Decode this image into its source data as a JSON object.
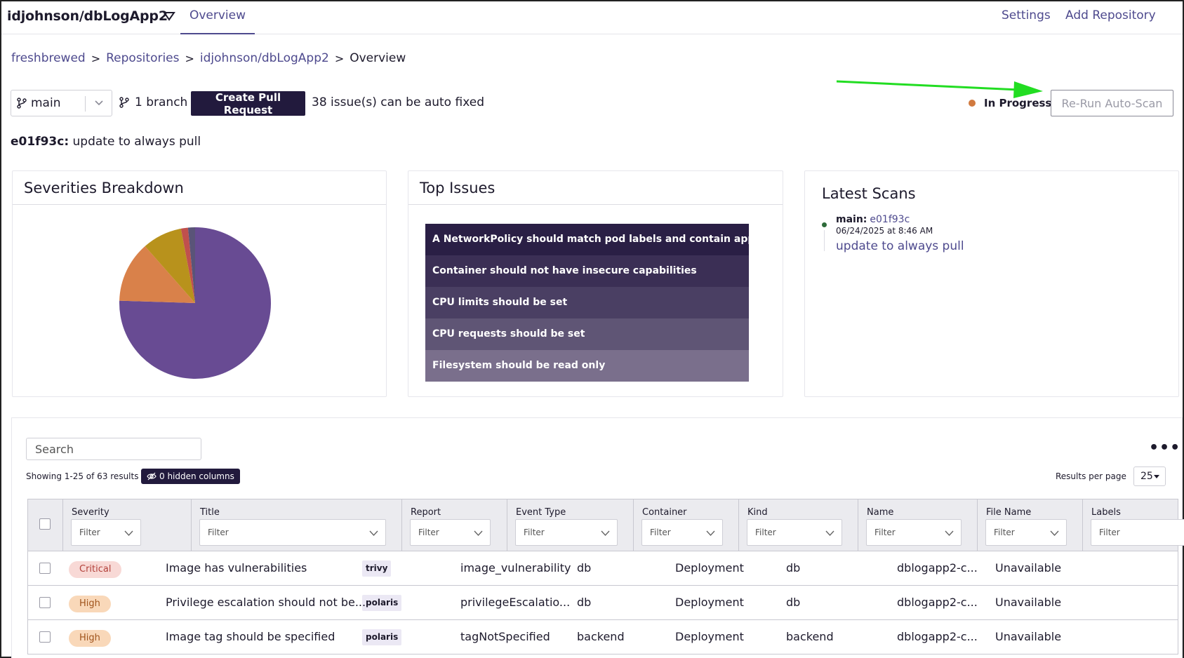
{
  "header": {
    "repo_title": "idjohnson/dbLogApp2",
    "tab_overview": "Overview",
    "settings_link": "Settings",
    "add_repository_link": "Add Repository"
  },
  "breadcrumb": {
    "items": [
      "freshbrewed",
      "Repositories",
      "idjohnson/dbLogApp2",
      "Overview"
    ],
    "separator": ">"
  },
  "toolbar": {
    "branch_value": "main",
    "branch_count": "1 branch",
    "create_pr_label": "Create Pull Request",
    "autofix_text": "38 issue(s) can be auto fixed",
    "scan_status": "In Progress",
    "rerun_label": "Re-Run Auto-Scan"
  },
  "commit": {
    "hash": "e01f93c:",
    "message": "update to always pull"
  },
  "severities": {
    "title": "Severities Breakdown",
    "colors": {
      "critical": "#c0504d",
      "high": "#d9814a",
      "medium": "#b8921c",
      "low": "#5a5478",
      "none": "#684b93"
    }
  },
  "chart_data": {
    "type": "pie",
    "slices": [
      {
        "category": "none",
        "value": 75.5
      },
      {
        "category": "high",
        "value": 13.0
      },
      {
        "category": "medium",
        "value": 8.5
      },
      {
        "category": "critical",
        "value": 1.5
      },
      {
        "category": "low",
        "value": 1.5
      }
    ]
  },
  "top_issues": {
    "title": "Top Issues",
    "items": [
      "A NetworkPolicy should match pod labels and contain applied egress and ingress rules",
      "Container should not have insecure capabilities",
      "CPU limits should be set",
      "CPU requests should be set",
      "Filesystem should be read only"
    ],
    "colors": [
      "#2a1f45",
      "#3b2f55",
      "#4a3f63",
      "#5f5575",
      "#7a6f8c"
    ]
  },
  "latest_scans": {
    "title": "Latest Scans",
    "branch": "main:",
    "hash": "e01f93c",
    "date": "06/24/2025 at 8:46 AM",
    "message": "update to always pull"
  },
  "table": {
    "search_placeholder": "Search",
    "more_menu": "•••",
    "showing": "Showing 1-25 of 63 results",
    "hidden_columns": "0 hidden columns",
    "results_per_page_label": "Results per page",
    "results_per_page_value": "25",
    "filter_placeholder": "Filter",
    "columns": [
      "Severity",
      "Title",
      "Report",
      "Event Type",
      "Container",
      "Kind",
      "Name",
      "File Name",
      "Labels"
    ],
    "rows": [
      {
        "severity": "Critical",
        "title": "Image has vulnerabilities",
        "report": "trivy",
        "event_type": "image_vulnerability",
        "container": "db",
        "kind": "Deployment",
        "name": "db",
        "file_name": "dblogapp2-c...",
        "labels": "Unavailable"
      },
      {
        "severity": "High",
        "title": "Privilege escalation should not be...",
        "report": "polaris",
        "event_type": "privilegeEscalatio...",
        "container": "db",
        "kind": "Deployment",
        "name": "db",
        "file_name": "dblogapp2-c...",
        "labels": "Unavailable"
      },
      {
        "severity": "High",
        "title": "Image tag should be specified",
        "report": "polaris",
        "event_type": "tagNotSpecified",
        "container": "backend",
        "kind": "Deployment",
        "name": "backend",
        "file_name": "dblogapp2-c...",
        "labels": "Unavailable"
      }
    ]
  },
  "annotation_color": "#22dd22"
}
